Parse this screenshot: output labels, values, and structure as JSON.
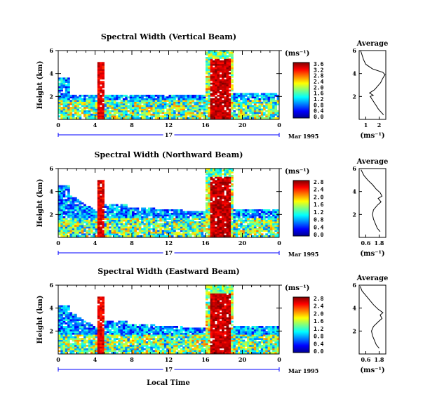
{
  "figure": {
    "xlabel": "Local Time",
    "date_label": "Mar 1995",
    "day_label": "17"
  },
  "chart_data": [
    {
      "type": "heatmap",
      "title": "Spectral Width (Vertical Beam)",
      "xlabel": "",
      "ylabel": "Height (km)",
      "xlim": [
        0,
        24
      ],
      "ylim": [
        0,
        6
      ],
      "x_ticks": [
        "0",
        "4",
        "8",
        "12",
        "16",
        "20",
        "0"
      ],
      "y_ticks": [
        "2",
        "4",
        "6"
      ],
      "colorbar": {
        "label": "(ms⁻¹)",
        "min": 0.0,
        "max": 3.6,
        "ticks": [
          "3.6",
          "3.2",
          "2.8",
          "2.4",
          "2.0",
          "1.6",
          "1.2",
          "0.8",
          "0.4",
          "0.0"
        ]
      },
      "average": {
        "title": "Average",
        "xlabel": "(ms⁻¹)",
        "xlim": [
          0.6,
          2.4
        ],
        "x_ticks": [
          "1",
          "2"
        ],
        "y_ticks": [
          "2",
          "4",
          "6"
        ],
        "profile": [
          [
            2.25,
            0.4
          ],
          [
            2.1,
            0.6
          ],
          [
            1.9,
            0.9
          ],
          [
            1.75,
            1.2
          ],
          [
            1.6,
            1.5
          ],
          [
            1.45,
            1.8
          ],
          [
            1.35,
            2.0
          ],
          [
            1.55,
            2.1
          ],
          [
            1.3,
            2.3
          ],
          [
            1.65,
            2.6
          ],
          [
            1.85,
            2.9
          ],
          [
            2.05,
            3.2
          ],
          [
            2.2,
            3.6
          ],
          [
            2.35,
            3.9
          ],
          [
            2.2,
            4.1
          ],
          [
            1.5,
            4.4
          ],
          [
            1.05,
            4.8
          ],
          [
            0.9,
            5.2
          ],
          [
            0.8,
            5.6
          ],
          [
            0.7,
            6.0
          ]
        ]
      }
    },
    {
      "type": "heatmap",
      "title": "Spectral Width (Northward Beam)",
      "xlabel": "",
      "ylabel": "Height (km)",
      "xlim": [
        0,
        24
      ],
      "ylim": [
        0,
        6
      ],
      "x_ticks": [
        "0",
        "4",
        "8",
        "12",
        "16",
        "20",
        "0"
      ],
      "y_ticks": [
        "2",
        "4",
        "6"
      ],
      "colorbar": {
        "label": "(ms⁻¹)",
        "min": 0.0,
        "max": 2.8,
        "ticks": [
          "2.8",
          "2.4",
          "2.0",
          "1.6",
          "1.2",
          "0.8",
          "0.4",
          "0.0"
        ]
      },
      "average": {
        "title": "Average",
        "xlabel": "(ms⁻¹)",
        "xlim": [
          0.6,
          2.0
        ],
        "x_ticks": [
          "0.6",
          "1.8"
        ],
        "y_ticks": [
          "2",
          "4",
          "6"
        ],
        "profile": [
          [
            1.7,
            0.5
          ],
          [
            1.55,
            0.8
          ],
          [
            1.45,
            1.2
          ],
          [
            1.35,
            1.6
          ],
          [
            1.3,
            2.0
          ],
          [
            1.35,
            2.4
          ],
          [
            1.55,
            2.8
          ],
          [
            1.75,
            3.1
          ],
          [
            1.6,
            3.4
          ],
          [
            1.8,
            3.6
          ],
          [
            1.7,
            3.9
          ],
          [
            1.5,
            4.2
          ],
          [
            1.3,
            4.6
          ],
          [
            1.05,
            5.0
          ],
          [
            0.85,
            5.4
          ],
          [
            0.7,
            5.9
          ]
        ]
      }
    },
    {
      "type": "heatmap",
      "title": "Spectral Width (Eastward Beam)",
      "xlabel": "",
      "ylabel": "Height (km)",
      "xlim": [
        0,
        24
      ],
      "ylim": [
        0,
        6
      ],
      "x_ticks": [
        "0",
        "4",
        "8",
        "12",
        "16",
        "20",
        "0"
      ],
      "y_ticks": [
        "2",
        "4",
        "6"
      ],
      "colorbar": {
        "label": "(ms⁻¹)",
        "min": 0.0,
        "max": 2.8,
        "ticks": [
          "2.8",
          "2.4",
          "2.0",
          "1.6",
          "1.2",
          "0.8",
          "0.4",
          "0.0"
        ]
      },
      "average": {
        "title": "Average",
        "xlabel": "(ms⁻¹)",
        "xlim": [
          0.6,
          2.0
        ],
        "x_ticks": [
          "0.6",
          "1.8"
        ],
        "y_ticks": [
          "2",
          "4",
          "6"
        ],
        "profile": [
          [
            1.65,
            0.5
          ],
          [
            1.5,
            0.8
          ],
          [
            1.4,
            1.2
          ],
          [
            1.3,
            1.6
          ],
          [
            1.25,
            2.0
          ],
          [
            1.35,
            2.4
          ],
          [
            1.6,
            2.8
          ],
          [
            1.8,
            3.1
          ],
          [
            1.7,
            3.4
          ],
          [
            1.85,
            3.6
          ],
          [
            1.6,
            3.9
          ],
          [
            1.35,
            4.3
          ],
          [
            1.15,
            4.7
          ],
          [
            0.95,
            5.1
          ],
          [
            0.75,
            5.5
          ],
          [
            0.65,
            5.9
          ]
        ]
      }
    }
  ]
}
